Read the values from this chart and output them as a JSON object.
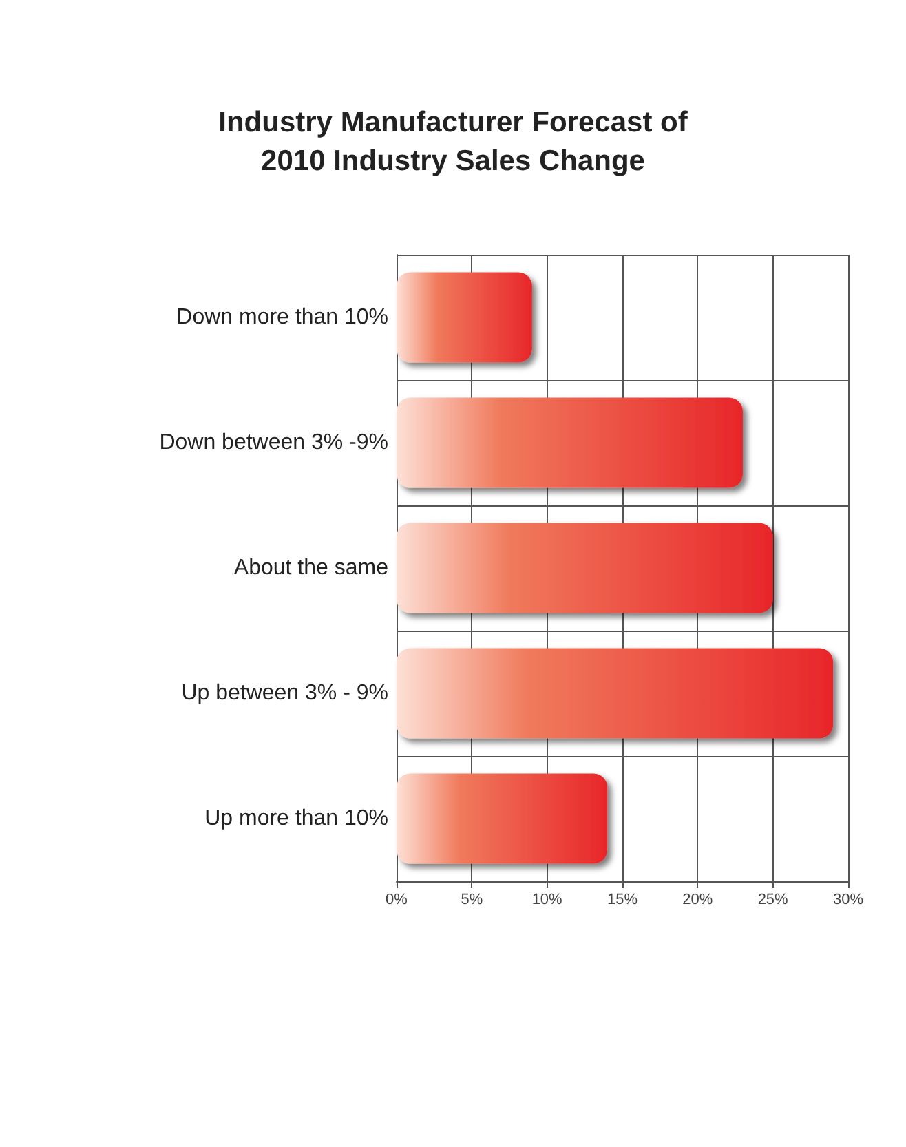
{
  "chart_data": {
    "type": "bar",
    "orientation": "horizontal",
    "title": "Industry Manufacturer Forecast of\n2010 Industry Sales Change",
    "categories": [
      "Down more than 10%",
      "Down between 3% -9%",
      "About the same",
      "Up between 3% - 9%",
      "Up more than 10%"
    ],
    "values": [
      9,
      23,
      25,
      29,
      14
    ],
    "color": "#e8262a",
    "xlim": [
      0,
      30
    ],
    "xticks": [
      {
        "value": 0,
        "label": "0%"
      },
      {
        "value": 5,
        "label": "5%"
      },
      {
        "value": 10,
        "label": "10%"
      },
      {
        "value": 15,
        "label": "15%"
      },
      {
        "value": 20,
        "label": "20%"
      },
      {
        "value": 25,
        "label": "25%"
      },
      {
        "value": 30,
        "label": "30%"
      }
    ],
    "grid": true
  }
}
